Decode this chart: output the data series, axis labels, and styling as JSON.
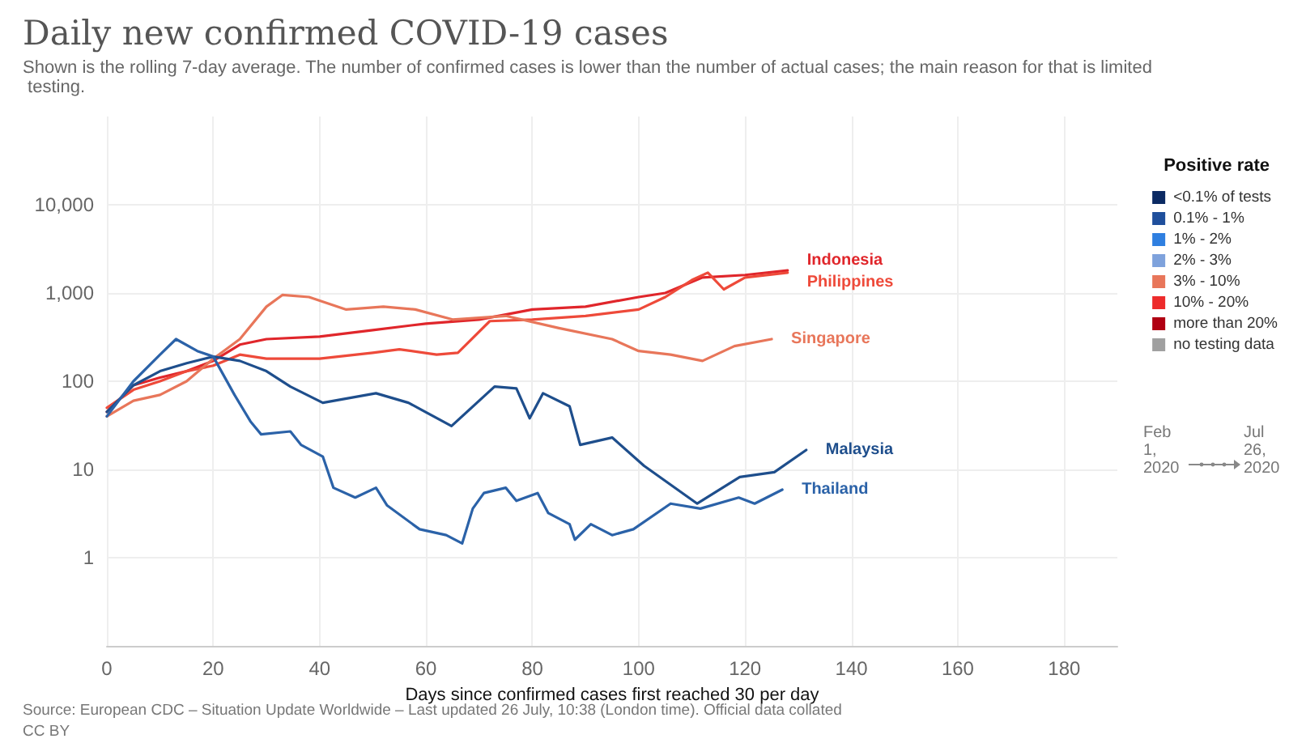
{
  "chart_data": {
    "type": "line",
    "title": "Daily new confirmed COVID-19 cases",
    "subtitle": "Shown is the rolling 7-day average. The number of confirmed cases is lower than the number of actual cases; the main reason for that is limited testing.",
    "xlabel": "Days since confirmed cases first reached 30 per day",
    "legend_title": "Positive rate",
    "annotations": [
      "Source: European CDC – Situation Update Worldwide – Last updated 26 July, 10:38 (London time). Official data collated",
      "CC BY",
      "Feb 1, 2020",
      "Jul 26, 2020"
    ],
    "log": "y",
    "grid": true,
    "legend": "right",
    "marker": "none",
    "xlim": [
      0,
      190
    ],
    "xticks": [
      0,
      20,
      40,
      60,
      80,
      100,
      120,
      140,
      160,
      180
    ],
    "ylim": [
      0.1,
      100000
    ],
    "yticks": [
      1,
      10,
      100,
      {
        "value": 1000,
        "label": "1,000"
      },
      {
        "value": 10000,
        "label": "10,000"
      }
    ],
    "series": [
      {
        "name": "Indonesia",
        "color": "#e0262b",
        "x": [
          0,
          5,
          10,
          15,
          20,
          25,
          30,
          40,
          50,
          60,
          70,
          80,
          90,
          100,
          105,
          112,
          120,
          128
        ],
        "values": [
          45,
          90,
          110,
          130,
          170,
          260,
          300,
          320,
          380,
          450,
          500,
          650,
          700,
          900,
          1000,
          1500,
          1600,
          1800
        ]
      },
      {
        "name": "Philippines",
        "color": "#ee4a3a",
        "x": [
          0,
          5,
          10,
          15,
          20,
          25,
          30,
          40,
          50,
          55,
          62,
          66,
          72,
          80,
          90,
          100,
          105,
          110,
          113,
          116,
          120,
          128
        ],
        "values": [
          50,
          80,
          100,
          130,
          150,
          200,
          180,
          180,
          210,
          230,
          200,
          210,
          480,
          500,
          550,
          650,
          900,
          1400,
          1700,
          1100,
          1500,
          1700
        ]
      },
      {
        "name": "Singapore",
        "color": "#e8765a",
        "x": [
          0,
          5,
          10,
          15,
          20,
          25,
          30,
          33,
          38,
          45,
          52,
          58,
          65,
          75,
          85,
          95,
          100,
          106,
          112,
          118,
          125
        ],
        "values": [
          40,
          60,
          70,
          100,
          180,
          300,
          700,
          950,
          900,
          650,
          700,
          650,
          500,
          550,
          400,
          300,
          220,
          200,
          170,
          250,
          300
        ]
      },
      {
        "name": "Malaysia",
        "color": "#1e4e8c",
        "x": [
          0,
          5,
          10,
          15,
          20,
          25,
          30,
          34.5,
          40.6,
          50.6,
          56.7,
          64.8,
          72.9,
          77,
          79.5,
          82,
          87,
          89,
          95,
          101,
          111,
          119,
          125.5,
          131.5
        ],
        "values": [
          45,
          90,
          130,
          160,
          190,
          170,
          130,
          87,
          57,
          73,
          57,
          31,
          87,
          83,
          38,
          73,
          52,
          19,
          23,
          11,
          4.1,
          8.2,
          9.3,
          16.6
        ]
      },
      {
        "name": "Thailand",
        "color": "#2b62a8",
        "x": [
          0,
          5,
          10,
          13,
          17,
          20,
          24,
          27,
          29,
          34.5,
          36.5,
          40.6,
          42.6,
          46.7,
          50.6,
          52.7,
          58.8,
          63.8,
          66.8,
          68.8,
          70.9,
          75,
          77,
          81,
          83,
          87,
          88,
          91,
          95,
          99,
          106,
          111.6,
          118.8,
          121.8,
          127
        ],
        "values": [
          40,
          100,
          200,
          300,
          220,
          190,
          70,
          35,
          25,
          27,
          19,
          14,
          6.2,
          4.8,
          6.2,
          3.9,
          2.1,
          1.8,
          1.45,
          3.6,
          5.4,
          6.2,
          4.4,
          5.4,
          3.2,
          2.4,
          1.6,
          2.4,
          1.8,
          2.1,
          4.1,
          3.6,
          4.8,
          4.1,
          5.9
        ]
      },
      {
        "name": "<0.1% of tests",
        "color": "#0b2a63"
      },
      {
        "name": "0.1% - 1%",
        "color": "#1f4f9c"
      },
      {
        "name": "1% - 2%",
        "color": "#2f7fe0"
      },
      {
        "name": "2% - 3%",
        "color": "#7ea2dc"
      },
      {
        "name": "3% - 10%",
        "color": "#e8765a"
      },
      {
        "name": "10% - 20%",
        "color": "#ed2b2b"
      },
      {
        "name": "more than 20%",
        "color": "#b00012"
      },
      {
        "name": "no testing data",
        "color": "#a0a0a0"
      }
    ]
  }
}
